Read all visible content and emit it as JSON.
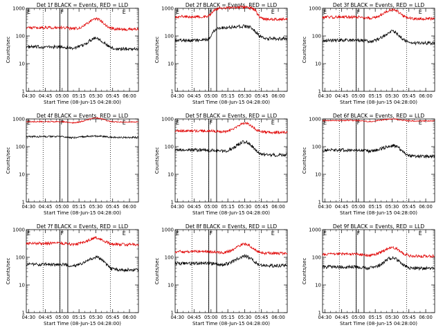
{
  "figure": {
    "colors": {
      "events": "#000000",
      "lld": "#e00000",
      "axis": "#000000",
      "background": "#ffffff"
    }
  },
  "chart_data": [
    {
      "type": "line",
      "title": "Det 1f BLACK = Events, RED = LLD",
      "xlabel": "Start Time (08-Jun-15 04:28:00)",
      "ylabel": "Counts/sec",
      "yscale": "log",
      "ylim": [
        1,
        1000
      ],
      "xlim": [
        270,
        370
      ],
      "xticks": [
        "04:30",
        "04:45",
        "05:00",
        "05:15",
        "05:30",
        "05:45",
        "06:00"
      ],
      "ytick_labels": [
        "1",
        "10",
        "100",
        "1000"
      ],
      "markers": [
        {
          "label": "E",
          "x": 270
        },
        {
          "label": "F",
          "x": 300
        },
        {
          "label": "E",
          "x": 355
        }
      ],
      "solid_vlines": [
        300,
        307
      ],
      "dotted_vlines": [
        285,
        300,
        345
      ],
      "series": [
        {
          "name": "Events",
          "color": "#000000",
          "base": 40,
          "bump": 85,
          "final": 34,
          "noise": 0.06
        },
        {
          "name": "LLD",
          "color": "#e00000",
          "base": 200,
          "bump": 420,
          "final": 175,
          "noise": 0.05
        }
      ]
    },
    {
      "type": "line",
      "title": "Det 2f BLACK = Events, RED = LLD",
      "xlabel": "Start Time (08-Jun-15 04:28:00)",
      "ylabel": "Counts/sec",
      "yscale": "log",
      "ylim": [
        1,
        1000
      ],
      "xlim": [
        270,
        370
      ],
      "xticks": [
        "04:30",
        "04:45",
        "05:00",
        "05:15",
        "05:30",
        "05:45",
        "06:00"
      ],
      "ytick_labels": [
        "1",
        "10",
        "100",
        "1000"
      ],
      "markers": [
        {
          "label": "E",
          "x": 270
        },
        {
          "label": "F",
          "x": 300
        },
        {
          "label": "E",
          "x": 355
        }
      ],
      "solid_vlines": [
        300,
        307
      ],
      "dotted_vlines": [
        285,
        300,
        345
      ],
      "series": [
        {
          "name": "Events",
          "color": "#000000",
          "base": 70,
          "bump": 200,
          "final": 80,
          "noise": 0.06,
          "plateau": true
        },
        {
          "name": "LLD",
          "color": "#e00000",
          "base": 500,
          "bump": 1000,
          "final": 400,
          "noise": 0.05,
          "plateau": true
        }
      ]
    },
    {
      "type": "line",
      "title": "Det 3f BLACK = Events, RED = LLD",
      "xlabel": "Start Time (08-Jun-15 04:28:00)",
      "ylabel": "Counts/sec",
      "yscale": "log",
      "ylim": [
        1,
        1000
      ],
      "xlim": [
        270,
        370
      ],
      "xticks": [
        "04:30",
        "04:45",
        "05:00",
        "05:15",
        "05:30",
        "05:45",
        "06:00"
      ],
      "ytick_labels": [
        "1",
        "10",
        "100",
        "1000"
      ],
      "markers": [
        {
          "label": "E",
          "x": 270
        },
        {
          "label": "F",
          "x": 300
        },
        {
          "label": "E",
          "x": 355
        }
      ],
      "solid_vlines": [
        300,
        307
      ],
      "dotted_vlines": [
        285,
        300,
        345
      ],
      "series": [
        {
          "name": "Events",
          "color": "#000000",
          "base": 70,
          "bump": 145,
          "final": 55,
          "noise": 0.06
        },
        {
          "name": "LLD",
          "color": "#e00000",
          "base": 480,
          "bump": 900,
          "final": 420,
          "noise": 0.05
        }
      ]
    },
    {
      "type": "line",
      "title": "Det 4f BLACK = Events, RED = LLD",
      "xlabel": "Start Time (08-Jun-15 04:28:00)",
      "ylabel": "Counts/sec",
      "yscale": "log",
      "ylim": [
        1,
        1000
      ],
      "xlim": [
        270,
        370
      ],
      "xticks": [
        "04:30",
        "04:45",
        "05:00",
        "05:15",
        "05:30",
        "05:45",
        "06:00"
      ],
      "ytick_labels": [
        "1",
        "10",
        "100",
        "1000"
      ],
      "markers": [
        {
          "label": "E",
          "x": 270
        },
        {
          "label": "F",
          "x": 300
        },
        {
          "label": "E",
          "x": 355
        }
      ],
      "solid_vlines": [
        300,
        307
      ],
      "dotted_vlines": [
        285,
        300,
        345
      ],
      "series": [
        {
          "name": "Events",
          "color": "#000000",
          "base": 230,
          "bump": 240,
          "final": 215,
          "noise": 0.03
        },
        {
          "name": "LLD",
          "color": "#e00000",
          "base": 800,
          "bump": 1100,
          "final": 780,
          "noise": 0.02
        }
      ]
    },
    {
      "type": "line",
      "title": "Det 5f BLACK = Events, RED = LLD",
      "xlabel": "Start Time (08-Jun-15 04:28:00)",
      "ylabel": "Counts/sec",
      "yscale": "log",
      "ylim": [
        1,
        1000
      ],
      "xlim": [
        270,
        370
      ],
      "xticks": [
        "04:30",
        "04:45",
        "05:00",
        "05:15",
        "05:30",
        "05:45",
        "06:00"
      ],
      "ytick_labels": [
        "1",
        "10",
        "100",
        "1000"
      ],
      "markers": [
        {
          "label": "E",
          "x": 270
        },
        {
          "label": "F",
          "x": 300
        },
        {
          "label": "E",
          "x": 355
        }
      ],
      "solid_vlines": [
        300,
        307
      ],
      "dotted_vlines": [
        285,
        300,
        345
      ],
      "series": [
        {
          "name": "Events",
          "color": "#000000",
          "base": 75,
          "bump": 150,
          "final": 50,
          "noise": 0.06
        },
        {
          "name": "LLD",
          "color": "#e00000",
          "base": 370,
          "bump": 700,
          "final": 330,
          "noise": 0.05
        }
      ]
    },
    {
      "type": "line",
      "title": "Det 6f BLACK = Events, RED = LLD",
      "xlabel": "Start Time (08-Jun-15 04:28:00)",
      "ylabel": "Counts/sec",
      "yscale": "log",
      "ylim": [
        1,
        1000
      ],
      "xlim": [
        270,
        370
      ],
      "xticks": [
        "04:30",
        "04:45",
        "05:00",
        "05:15",
        "05:30",
        "05:45",
        "06:00"
      ],
      "ytick_labels": [
        "1",
        "10",
        "100",
        "1000"
      ],
      "markers": [
        {
          "label": "E",
          "x": 270
        },
        {
          "label": "F",
          "x": 300
        },
        {
          "label": "E",
          "x": 355
        }
      ],
      "solid_vlines": [
        300,
        307
      ],
      "dotted_vlines": [
        285,
        300,
        345
      ],
      "series": [
        {
          "name": "Events",
          "color": "#000000",
          "base": 75,
          "bump": 110,
          "final": 45,
          "noise": 0.06
        },
        {
          "name": "LLD",
          "color": "#e00000",
          "base": 880,
          "bump": 1000,
          "final": 850,
          "noise": 0.02
        }
      ]
    },
    {
      "type": "line",
      "title": "Det 7f BLACK = Events, RED = LLD",
      "xlabel": "Start Time (08-Jun-15 04:28:00)",
      "ylabel": "Counts/sec",
      "yscale": "log",
      "ylim": [
        1,
        1000
      ],
      "xlim": [
        270,
        370
      ],
      "xticks": [
        "04:30",
        "04:45",
        "05:00",
        "05:15",
        "05:30",
        "05:45",
        "06:00"
      ],
      "ytick_labels": [
        "1",
        "10",
        "100",
        "1000"
      ],
      "markers": [
        {
          "label": "E",
          "x": 270
        },
        {
          "label": "F",
          "x": 300
        },
        {
          "label": "E",
          "x": 355
        }
      ],
      "solid_vlines": [
        300,
        307
      ],
      "dotted_vlines": [
        285,
        300,
        345
      ],
      "series": [
        {
          "name": "Events",
          "color": "#000000",
          "base": 55,
          "bump": 100,
          "final": 35,
          "noise": 0.06
        },
        {
          "name": "LLD",
          "color": "#e00000",
          "base": 320,
          "bump": 500,
          "final": 290,
          "noise": 0.05
        }
      ]
    },
    {
      "type": "line",
      "title": "Det 8f BLACK = Events, RED = LLD",
      "xlabel": "Start Time (08-Jun-15 04:28:00)",
      "ylabel": "Counts/sec",
      "yscale": "log",
      "ylim": [
        1,
        1000
      ],
      "xlim": [
        270,
        370
      ],
      "xticks": [
        "04:30",
        "04:45",
        "05:00",
        "05:15",
        "05:30",
        "05:45",
        "06:00"
      ],
      "ytick_labels": [
        "1",
        "10",
        "100",
        "1000"
      ],
      "markers": [
        {
          "label": "E",
          "x": 270
        },
        {
          "label": "F",
          "x": 300
        },
        {
          "label": "E",
          "x": 355
        }
      ],
      "solid_vlines": [
        300,
        307
      ],
      "dotted_vlines": [
        285,
        300,
        345
      ],
      "series": [
        {
          "name": "Events",
          "color": "#000000",
          "base": 60,
          "bump": 110,
          "final": 50,
          "noise": 0.06
        },
        {
          "name": "LLD",
          "color": "#e00000",
          "base": 160,
          "bump": 300,
          "final": 140,
          "noise": 0.05
        }
      ]
    },
    {
      "type": "line",
      "title": "Det 9f BLACK = Events, RED = LLD",
      "xlabel": "Start Time (08-Jun-15 04:28:00)",
      "ylabel": "Counts/sec",
      "yscale": "log",
      "ylim": [
        1,
        1000
      ],
      "xlim": [
        270,
        370
      ],
      "xticks": [
        "04:30",
        "04:45",
        "05:00",
        "05:15",
        "05:30",
        "05:45",
        "06:00"
      ],
      "ytick_labels": [
        "1",
        "10",
        "100",
        "1000"
      ],
      "markers": [
        {
          "label": "E",
          "x": 270
        },
        {
          "label": "F",
          "x": 300
        },
        {
          "label": "E",
          "x": 355
        }
      ],
      "solid_vlines": [
        300,
        307
      ],
      "dotted_vlines": [
        285,
        300,
        345
      ],
      "series": [
        {
          "name": "Events",
          "color": "#000000",
          "base": 45,
          "bump": 95,
          "final": 40,
          "noise": 0.06
        },
        {
          "name": "LLD",
          "color": "#e00000",
          "base": 130,
          "bump": 230,
          "final": 110,
          "noise": 0.05
        }
      ]
    }
  ]
}
